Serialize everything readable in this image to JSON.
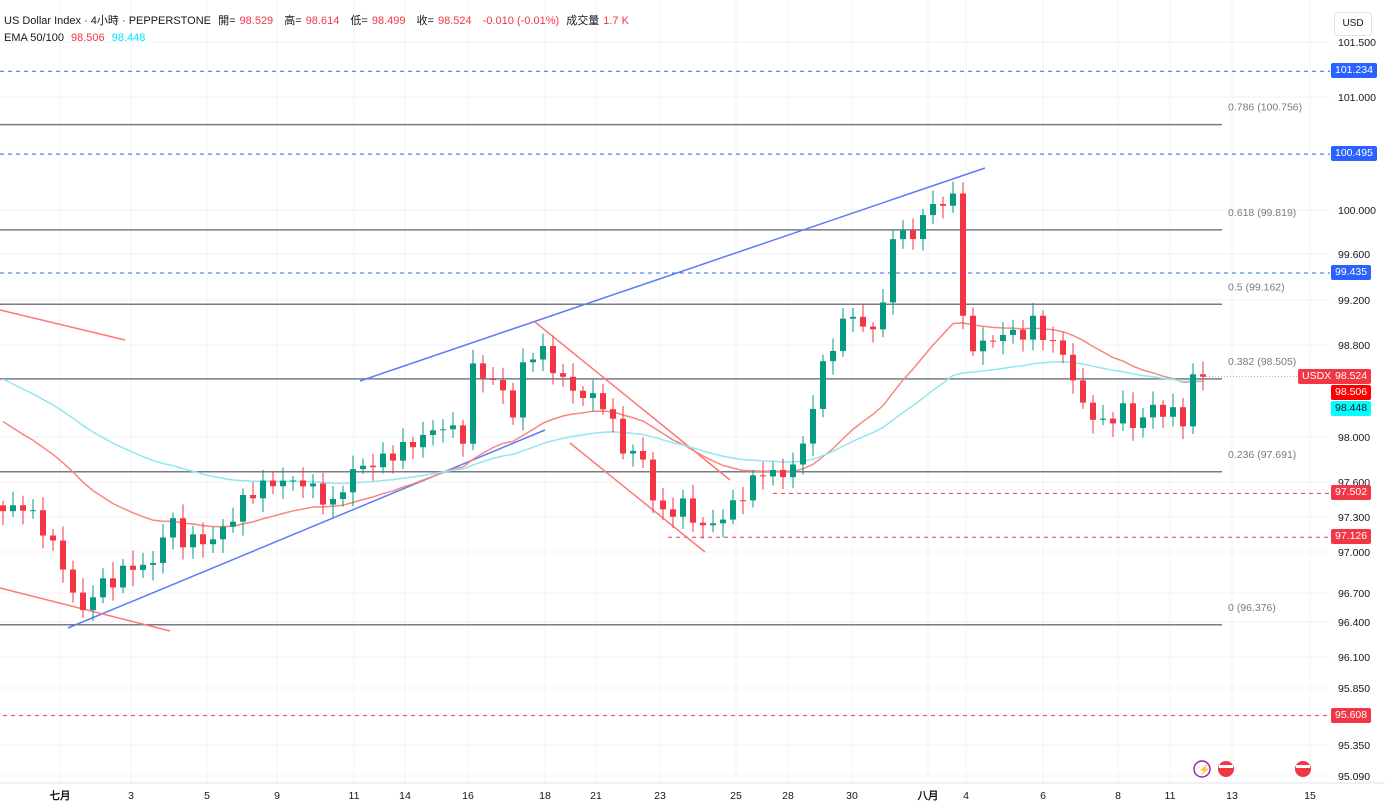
{
  "legend": {
    "symbol": "US Dollar Index · 4小時 · PEPPERSTONE",
    "open_label": "開=",
    "open": "98.529",
    "high_label": "高=",
    "high": "98.614",
    "low_label": "低=",
    "low": "98.499",
    "close_label": "收=",
    "close": "98.524",
    "change": "-0.010 (-0.01%)",
    "volume_label": "成交量",
    "volume": "1.7 K",
    "ema_label": "EMA 50/100",
    "ema50": "98.506",
    "ema100": "98.448"
  },
  "currency": "USD",
  "colors": {
    "up": "#089981",
    "down": "#f23645",
    "ema50": "#f7877f",
    "ema100": "#8fe8ee",
    "blue": "#2962ff",
    "red": "#f23645"
  },
  "chart_data": {
    "type": "candlestick",
    "title": "US Dollar Index · 4小時 · PEPPERSTONE",
    "y_ticks": [
      "101.500",
      "101.000",
      "100.000",
      "99.600",
      "99.200",
      "98.800",
      "98.000",
      "97.600",
      "97.300",
      "97.000",
      "96.700",
      "96.400",
      "96.100",
      "95.850",
      "95.350",
      "95.090"
    ],
    "x_ticks": [
      "七月",
      "3",
      "5",
      "9",
      "11",
      "14",
      "16",
      "18",
      "21",
      "23",
      "25",
      "28",
      "30",
      "八月",
      "4",
      "6",
      "8",
      "11",
      "13",
      "15"
    ],
    "close_path": [
      [
        0,
        97.35
      ],
      [
        2,
        97.4
      ],
      [
        4,
        97.2
      ],
      [
        6,
        96.9
      ],
      [
        8,
        96.5
      ],
      [
        9,
        96.7
      ],
      [
        11,
        96.8
      ],
      [
        13,
        96.9
      ],
      [
        15,
        96.9
      ],
      [
        16.5,
        97.3
      ],
      [
        18,
        97.1
      ],
      [
        21,
        97.1
      ],
      [
        23,
        97.3
      ],
      [
        24.5,
        97.5
      ],
      [
        27,
        97.6
      ],
      [
        30,
        97.6
      ],
      [
        33,
        97.4
      ],
      [
        35,
        97.7
      ],
      [
        38,
        97.8
      ],
      [
        41,
        97.95
      ],
      [
        44,
        98.1
      ],
      [
        46,
        98.0
      ],
      [
        46.5,
        98.6
      ],
      [
        48,
        98.55
      ],
      [
        50,
        98.4
      ],
      [
        51,
        98.2
      ],
      [
        52,
        98.6
      ],
      [
        53.5,
        98.8
      ],
      [
        55,
        98.6
      ],
      [
        57,
        98.4
      ],
      [
        60,
        98.3
      ],
      [
        62,
        97.9
      ],
      [
        64,
        97.8
      ],
      [
        65.5,
        97.3
      ],
      [
        68,
        97.4
      ],
      [
        70,
        97.2
      ],
      [
        72,
        97.3
      ],
      [
        74,
        97.5
      ],
      [
        76,
        97.7
      ],
      [
        78,
        97.65
      ],
      [
        80,
        97.9
      ],
      [
        81.5,
        98.5
      ],
      [
        83,
        98.8
      ],
      [
        84.5,
        99.1
      ],
      [
        87,
        98.9
      ],
      [
        88.5,
        99.4
      ],
      [
        89.5,
        99.95
      ],
      [
        91,
        99.7
      ],
      [
        92.5,
        100.1
      ],
      [
        94,
        100.0
      ],
      [
        95.5,
        100.3
      ],
      [
        96,
        99.0
      ],
      [
        96.5,
        98.8
      ],
      [
        98,
        98.8
      ],
      [
        100,
        98.9
      ],
      [
        102,
        98.9
      ],
      [
        103,
        99.0
      ],
      [
        105,
        98.8
      ],
      [
        106.5,
        98.7
      ],
      [
        107.5,
        98.3
      ],
      [
        109,
        98.2
      ],
      [
        110,
        98.1
      ],
      [
        112,
        98.25
      ],
      [
        113,
        98.1
      ],
      [
        115,
        98.25
      ],
      [
        117,
        98.2
      ],
      [
        118,
        98.15
      ],
      [
        119,
        98.5
      ],
      [
        120,
        98.524
      ]
    ],
    "ema50_last": 98.506,
    "ema100_last": 98.448,
    "last_price": 98.524,
    "symbol_tag": "USDX",
    "fib_levels": [
      {
        "ratio": "0.786",
        "price": 100.756,
        "label": "0.786 (100.756)"
      },
      {
        "ratio": "0.618",
        "price": 99.819,
        "label": "0.618 (99.819)"
      },
      {
        "ratio": "0.5",
        "price": 99.162,
        "label": "0.5 (99.162)"
      },
      {
        "ratio": "0.382",
        "price": 98.505,
        "label": "0.382 (98.505)"
      },
      {
        "ratio": "0.236",
        "price": 97.691,
        "label": "0.236 (97.691)"
      },
      {
        "ratio": "0",
        "price": 96.376,
        "label": "0 (96.376)"
      }
    ],
    "resistance_lines": [
      {
        "price": 101.234,
        "label": "101.234"
      },
      {
        "price": 100.495,
        "label": "100.495"
      },
      {
        "price": 99.435,
        "label": "99.435"
      }
    ],
    "support_lines": [
      {
        "price": 97.502,
        "label": "97.502",
        "start_bar": 77
      },
      {
        "price": 97.126,
        "label": "97.126",
        "start_bar": 66.5
      },
      {
        "price": 95.608,
        "label": "95.608",
        "start_bar": 0
      }
    ],
    "price_tags": {
      "last": "98.524",
      "ema50": "98.506",
      "ema100": "98.448"
    }
  }
}
